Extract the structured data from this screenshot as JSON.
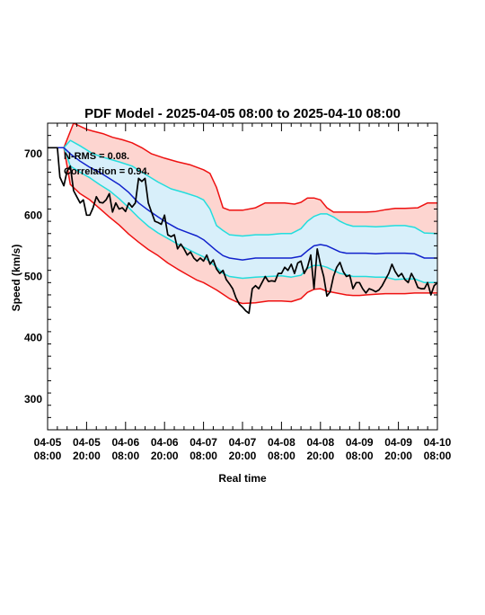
{
  "chart_data": {
    "type": "line",
    "title": "PDF Model - 2025-04-05 08:00 to 2025-04-10 08:00",
    "xlabel": "Real time",
    "ylabel": "Speed (km/s)",
    "xlim": [
      0,
      120
    ],
    "ylim": [
      250,
      750
    ],
    "yticks": [
      300,
      400,
      500,
      600,
      700
    ],
    "xticks": [
      {
        "hour": 0,
        "date": "04-05",
        "time": "08:00"
      },
      {
        "hour": 12,
        "date": "04-05",
        "time": "20:00"
      },
      {
        "hour": 24,
        "date": "04-06",
        "time": "08:00"
      },
      {
        "hour": 36,
        "date": "04-06",
        "time": "20:00"
      },
      {
        "hour": 48,
        "date": "04-07",
        "time": "08:00"
      },
      {
        "hour": 60,
        "date": "04-07",
        "time": "20:00"
      },
      {
        "hour": 72,
        "date": "04-08",
        "time": "08:00"
      },
      {
        "hour": 84,
        "date": "04-08",
        "time": "20:00"
      },
      {
        "hour": 96,
        "date": "04-09",
        "time": "08:00"
      },
      {
        "hour": 108,
        "date": "04-09",
        "time": "20:00"
      },
      {
        "hour": 120,
        "date": "04-10",
        "time": "08:00"
      }
    ],
    "annotations": [
      "N-RMS = 0.08.",
      "Correlation = 0.94."
    ],
    "colors": {
      "outer_band": "#fdd5d0",
      "inner_band": "#d8effa",
      "outer_line": "#ee1111",
      "inner_line": "#22dddd",
      "median_line": "#1122cc",
      "observed_line": "#000000"
    },
    "series": [
      {
        "key": "upper_outer",
        "color": "#ee1111",
        "width": 1.5,
        "x": [
          0,
          2,
          5,
          8,
          10,
          12,
          14,
          17,
          20,
          23,
          26,
          29,
          32,
          36,
          40,
          44,
          48,
          50,
          52,
          54,
          56,
          60,
          64,
          67,
          70,
          73,
          76,
          78,
          80,
          82,
          84,
          86,
          88,
          91,
          94,
          96,
          98,
          101,
          104,
          107,
          110,
          114,
          117,
          120
        ],
        "y": [
          710,
          710,
          710,
          750,
          745,
          740,
          737,
          733,
          727,
          723,
          718,
          710,
          700,
          693,
          687,
          682,
          674,
          668,
          645,
          612,
          608,
          608,
          612,
          620,
          620,
          620,
          618,
          621,
          628,
          628,
          625,
          612,
          605,
          605,
          605,
          605,
          605,
          606,
          609,
          611,
          611,
          612,
          620,
          620
        ]
      },
      {
        "key": "upper_inner",
        "color": "#22dddd",
        "width": 1.5,
        "x": [
          0,
          2,
          5,
          7,
          10,
          14,
          18,
          22,
          26,
          30,
          34,
          38,
          42,
          46,
          48,
          50,
          52,
          54,
          56,
          60,
          64,
          68,
          72,
          75,
          78,
          80,
          82,
          84,
          86,
          88,
          90,
          92,
          94,
          96,
          98,
          101,
          104,
          107,
          110,
          113,
          116,
          120
        ],
        "y": [
          710,
          710,
          710,
          722,
          713,
          700,
          693,
          687,
          680,
          667,
          654,
          643,
          637,
          630,
          625,
          610,
          583,
          575,
          568,
          566,
          568,
          568,
          570,
          570,
          578,
          590,
          598,
          602,
          602,
          597,
          590,
          585,
          582,
          582,
          582,
          581,
          582,
          583,
          583,
          580,
          571,
          570
        ]
      },
      {
        "key": "median",
        "color": "#1122cc",
        "width": 1.5,
        "x": [
          0,
          2,
          5,
          7,
          10,
          13,
          16,
          19,
          22,
          25,
          28,
          31,
          34,
          37,
          40,
          43,
          46,
          48,
          50,
          52,
          54,
          56,
          60,
          64,
          68,
          72,
          75,
          78,
          80,
          82,
          84,
          86,
          88,
          90,
          92,
          94,
          96,
          98,
          101,
          104,
          107,
          110,
          113,
          116,
          120
        ],
        "y": [
          710,
          710,
          710,
          700,
          688,
          678,
          670,
          660,
          650,
          637,
          620,
          608,
          597,
          587,
          578,
          572,
          566,
          560,
          551,
          542,
          534,
          530,
          527,
          530,
          530,
          530,
          530,
          533,
          542,
          550,
          552,
          550,
          545,
          540,
          538,
          538,
          538,
          538,
          537,
          538,
          538,
          538,
          537,
          530,
          530
        ]
      },
      {
        "key": "lower_inner",
        "color": "#22dddd",
        "width": 1.5,
        "x": [
          0,
          2,
          5,
          7,
          10,
          13,
          16,
          19,
          22,
          25,
          28,
          31,
          34,
          37,
          40,
          43,
          46,
          48,
          50,
          52,
          54,
          56,
          60,
          64,
          68,
          72,
          75,
          78,
          80,
          82,
          84,
          86,
          88,
          90,
          92,
          94,
          96,
          98,
          101,
          104,
          107,
          110,
          113,
          116,
          120
        ],
        "y": [
          710,
          710,
          710,
          680,
          670,
          661,
          650,
          640,
          627,
          612,
          596,
          582,
          571,
          562,
          553,
          545,
          537,
          532,
          524,
          515,
          505,
          500,
          497,
          499,
          500,
          501,
          499,
          502,
          513,
          518,
          518,
          515,
          510,
          505,
          503,
          500,
          500,
          500,
          499,
          499,
          495,
          496,
          496,
          490,
          490
        ]
      },
      {
        "key": "lower_outer",
        "color": "#ee1111",
        "width": 1.5,
        "x": [
          0,
          2,
          5,
          7,
          10,
          13,
          16,
          19,
          22,
          25,
          28,
          31,
          34,
          37,
          40,
          43,
          46,
          48,
          50,
          52,
          54,
          56,
          58,
          60,
          64,
          68,
          72,
          75,
          78,
          80,
          82,
          84,
          86,
          88,
          90,
          92,
          94,
          96,
          98,
          101,
          104,
          107,
          110,
          113,
          116,
          120
        ],
        "y": [
          710,
          710,
          710,
          650,
          635,
          625,
          611,
          597,
          584,
          569,
          556,
          544,
          534,
          522,
          512,
          503,
          494,
          490,
          484,
          478,
          471,
          464,
          459,
          456,
          457,
          460,
          460,
          459,
          464,
          474,
          479,
          480,
          476,
          474,
          472,
          470,
          469,
          469,
          470,
          471,
          472,
          472,
          472,
          473,
          473,
          473
        ]
      },
      {
        "key": "observed",
        "color": "#000000",
        "width": 1.7,
        "x": [
          0,
          3,
          3.8,
          5,
          6,
          7,
          8,
          9,
          10,
          11,
          12,
          13,
          14,
          15,
          16,
          17,
          18,
          19,
          20,
          21,
          22,
          23,
          24,
          25,
          26,
          27,
          28,
          29,
          30,
          31,
          32,
          33,
          34,
          35,
          36,
          37,
          38,
          39,
          40,
          41,
          42,
          43,
          44,
          45,
          46,
          47,
          48,
          49,
          50,
          51,
          52,
          53,
          54,
          55,
          56,
          57,
          58,
          59,
          60,
          61,
          62,
          63,
          64,
          65,
          66,
          67,
          68,
          69,
          70,
          71,
          72,
          73,
          74,
          75,
          76,
          77,
          78,
          79,
          80,
          81,
          82,
          83,
          84,
          85,
          86,
          87,
          88,
          89,
          90,
          91,
          92,
          93,
          94,
          95,
          96,
          97,
          98,
          99,
          100,
          101,
          102,
          103,
          104,
          105,
          106,
          107,
          108,
          109,
          110,
          111,
          112,
          113,
          114,
          115,
          116,
          117,
          118,
          119,
          120
        ],
        "y": [
          710,
          710,
          662,
          648,
          672,
          680,
          640,
          630,
          620,
          625,
          600,
          600,
          612,
          630,
          621,
          620,
          625,
          635,
          605,
          620,
          610,
          612,
          606,
          620,
          613,
          620,
          660,
          655,
          660,
          620,
          605,
          590,
          588,
          585,
          600,
          568,
          565,
          568,
          545,
          553,
          545,
          535,
          540,
          530,
          525,
          530,
          525,
          535,
          520,
          527,
          512,
          505,
          510,
          495,
          488,
          480,
          465,
          455,
          450,
          444,
          440,
          480,
          485,
          480,
          490,
          500,
          492,
          493,
          492,
          505,
          505,
          515,
          510,
          520,
          505,
          522,
          525,
          505,
          515,
          535,
          480,
          545,
          520,
          500,
          468,
          475,
          500,
          515,
          523,
          508,
          500,
          502,
          480,
          490,
          490,
          480,
          473,
          480,
          478,
          475,
          478,
          485,
          495,
          505,
          520,
          508,
          500,
          505,
          495,
          490,
          505,
          495,
          482,
          480,
          480,
          490,
          470,
          485,
          490
        ]
      }
    ]
  }
}
